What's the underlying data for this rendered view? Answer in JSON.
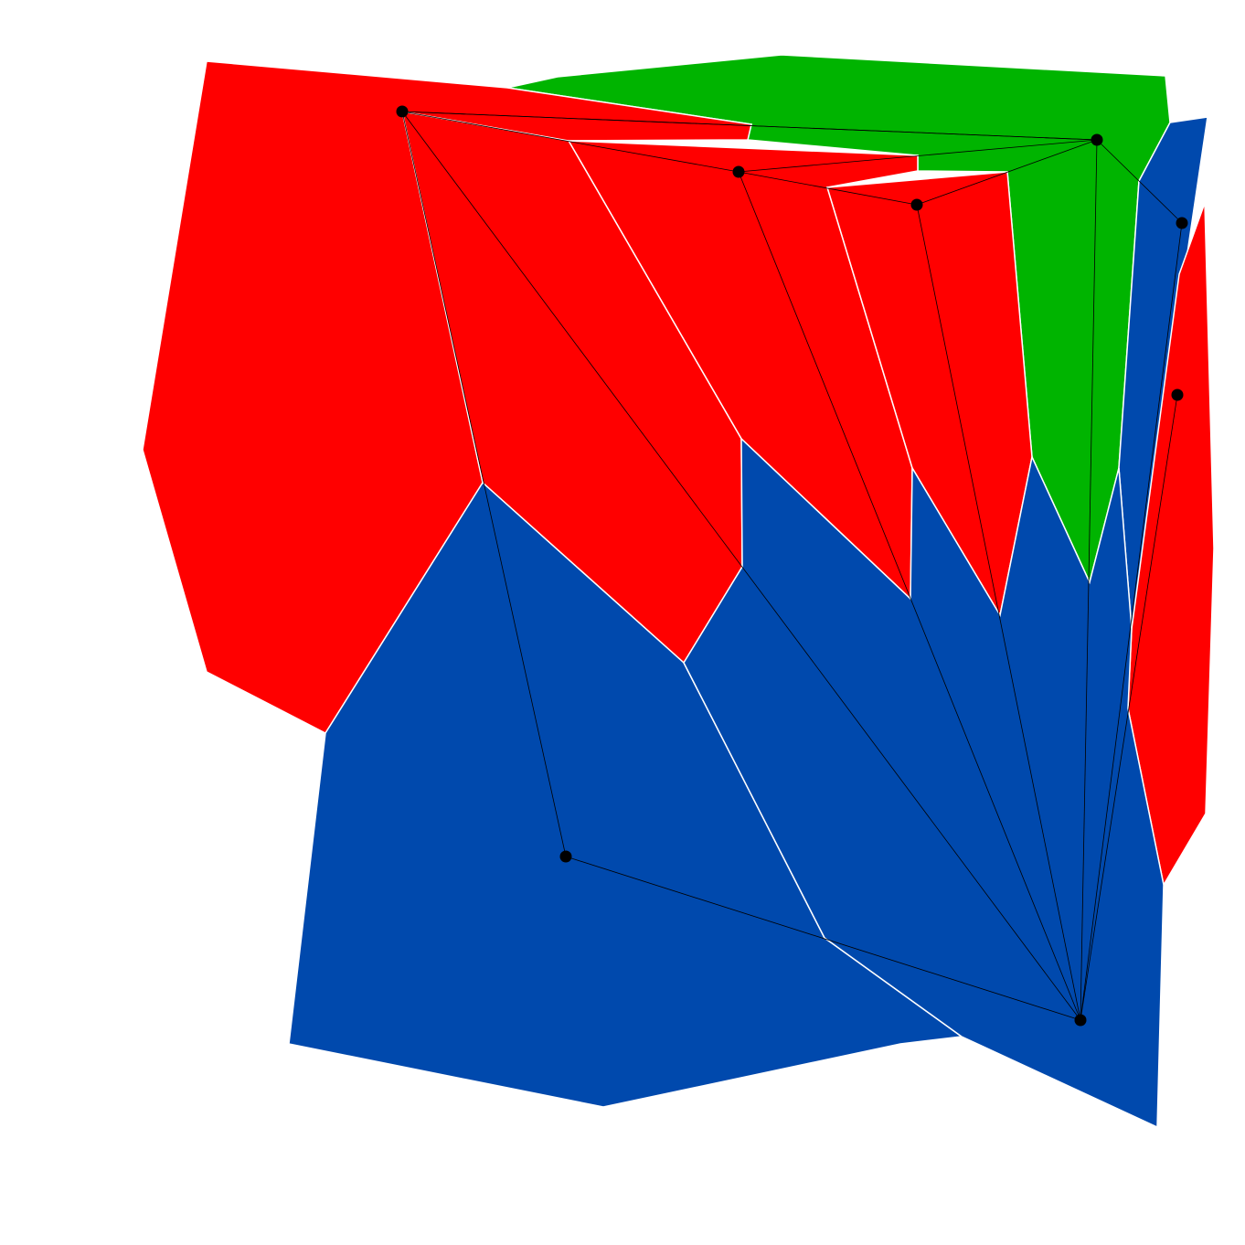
{
  "colors": {
    "red": "#ff0000",
    "green": "#00b400",
    "blue": "#0049ad",
    "edge": "#000000",
    "node": "#000000",
    "border": "#ffffff"
  },
  "regions": [
    {
      "id": "red-left",
      "color": "red"
    },
    {
      "id": "red-mid",
      "color": "red"
    },
    {
      "id": "red-inner",
      "color": "red"
    },
    {
      "id": "red-right",
      "color": "red"
    },
    {
      "id": "red-far-right",
      "color": "red"
    },
    {
      "id": "green-top",
      "color": "green"
    },
    {
      "id": "blue-strip",
      "color": "blue"
    },
    {
      "id": "blue-bottom-left",
      "color": "blue"
    },
    {
      "id": "blue-bottom-right",
      "color": "blue"
    }
  ],
  "nodes": [
    {
      "id": "n1"
    },
    {
      "id": "n2"
    },
    {
      "id": "n3"
    },
    {
      "id": "n4"
    },
    {
      "id": "n5"
    },
    {
      "id": "n6"
    },
    {
      "id": "n7"
    },
    {
      "id": "n8"
    }
  ],
  "edges": [
    [
      "n1",
      "n4"
    ],
    [
      "n1",
      "n4"
    ],
    [
      "n1",
      "n2"
    ],
    [
      "n1",
      "n7"
    ],
    [
      "n1",
      "n8"
    ],
    [
      "n2",
      "n3"
    ],
    [
      "n2",
      "n4"
    ],
    [
      "n2",
      "n8"
    ],
    [
      "n3",
      "n4"
    ],
    [
      "n3",
      "n8"
    ],
    [
      "n4",
      "n5"
    ],
    [
      "n4",
      "n8"
    ],
    [
      "n5",
      "n8"
    ],
    [
      "n6",
      "n8"
    ],
    [
      "n7",
      "n8"
    ]
  ]
}
